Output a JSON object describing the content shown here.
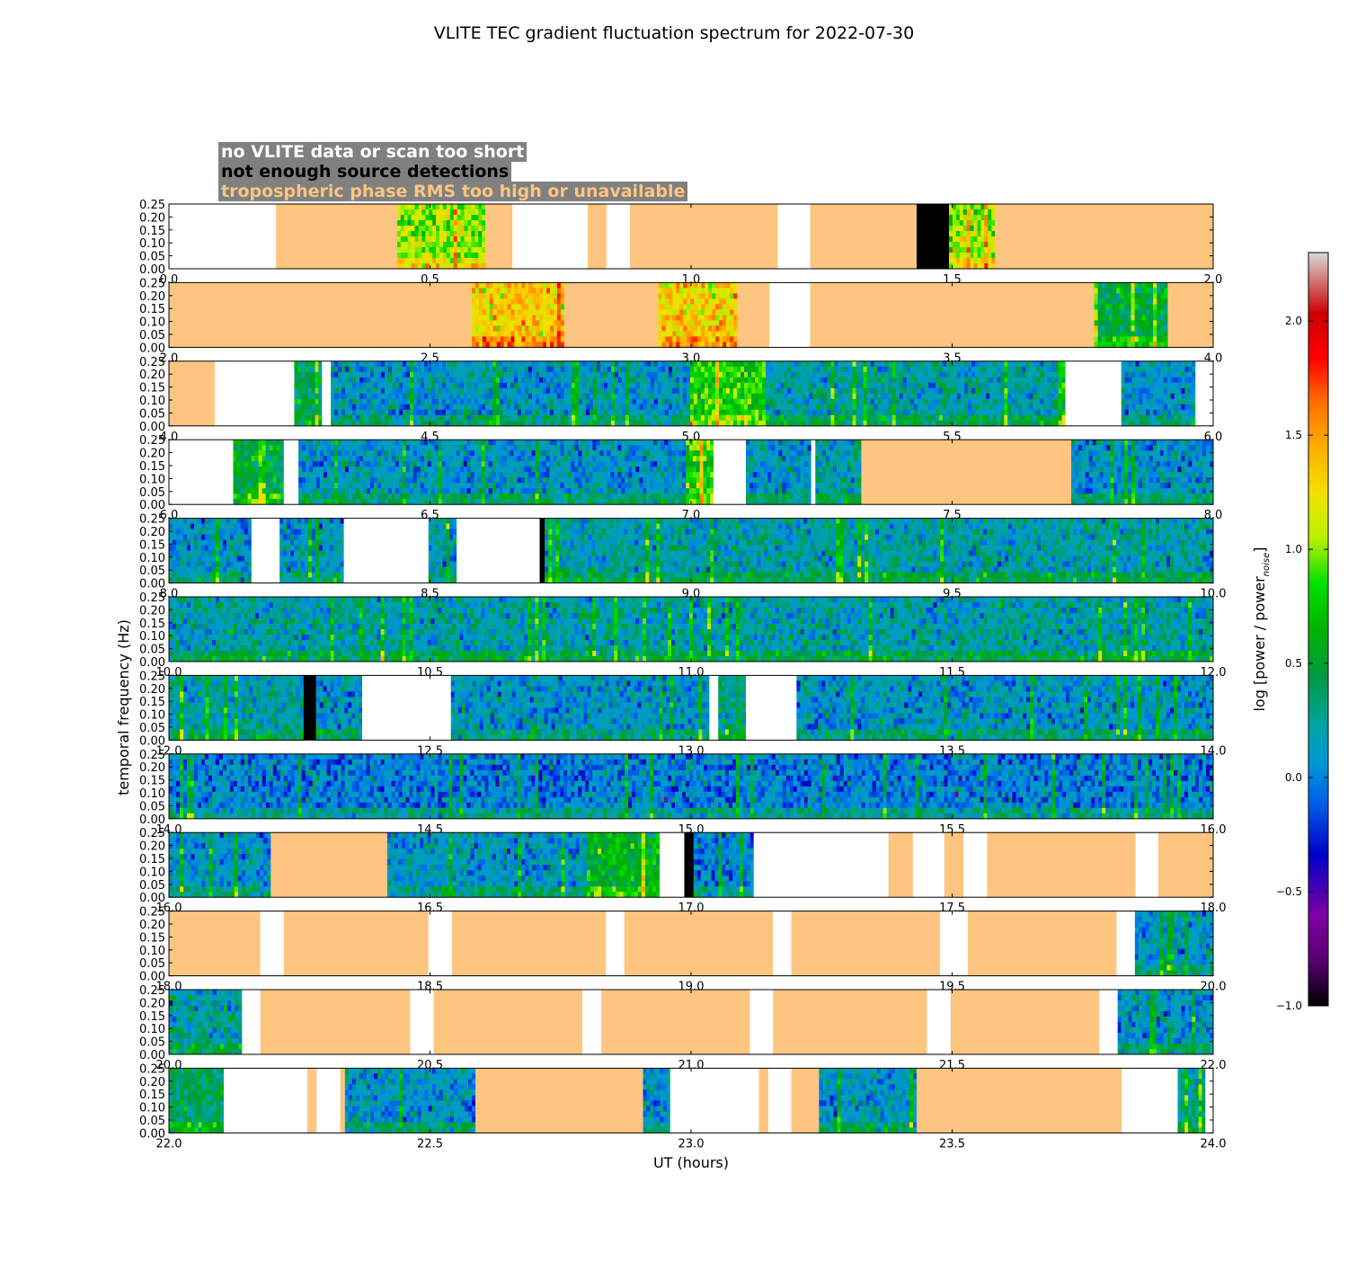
{
  "title": "VLITE TEC gradient fluctuation spectrum for 2022-07-30",
  "legend": [
    {
      "label": "no VLITE data or scan too short",
      "color": "#ffffff"
    },
    {
      "label": "not enough source detections",
      "color": "#000000"
    },
    {
      "label": "tropospheric phase RMS too high or unavailable",
      "color": "#fdc57f"
    }
  ],
  "chart_data": {
    "type": "heatmap",
    "xlabel": "UT (hours)",
    "ylabel": "temporal frequency (Hz)",
    "ylim": [
      0,
      0.25
    ],
    "yticks": [
      "0.00",
      "0.05",
      "0.10",
      "0.15",
      "0.20",
      "0.25"
    ],
    "colorbar": {
      "label": "log [power / power",
      "label_subscript": "noise",
      "label_close": "]",
      "range": [
        -1.0,
        2.3
      ],
      "ticks": [
        "−1.0",
        "−0.5",
        "0.0",
        "0.5",
        "1.0",
        "1.5",
        "2.0"
      ],
      "tick_values": [
        -1.0,
        -0.5,
        0.0,
        0.5,
        1.0,
        1.5,
        2.0
      ]
    },
    "colors": {
      "nodata": "#ffffff",
      "detections": "#000000",
      "troposphere": "#fdc57f"
    },
    "panels": [
      {
        "xlim": [
          0,
          2
        ],
        "xticks": [
          "0.0",
          "0.5",
          "1.0",
          "1.5",
          "2.0"
        ],
        "segments": [
          [
            "n",
            0,
            0.205
          ],
          [
            "t",
            0.205,
            0.437
          ],
          [
            "d",
            0.437,
            0.606,
            1.0
          ],
          [
            "t",
            0.606,
            0.658
          ],
          [
            "n",
            0.658,
            0.802
          ],
          [
            "t",
            0.802,
            0.838
          ],
          [
            "n",
            0.838,
            0.883
          ],
          [
            "t",
            0.883,
            1.166
          ],
          [
            "n",
            1.166,
            1.228
          ],
          [
            "t",
            1.228,
            1.432
          ],
          [
            "b",
            1.432,
            1.494
          ],
          [
            "d",
            1.494,
            1.582,
            1.0
          ],
          [
            "t",
            1.582,
            2.0
          ]
        ]
      },
      {
        "xlim": [
          2,
          4
        ],
        "xticks": [
          "2.0",
          "2.5",
          "3.0",
          "3.5",
          "4.0"
        ],
        "segments": [
          [
            "t",
            2.0,
            2.58
          ],
          [
            "d",
            2.58,
            2.757,
            1.3
          ],
          [
            "t",
            2.757,
            2.937
          ],
          [
            "d",
            2.937,
            3.088,
            1.3
          ],
          [
            "t",
            3.088,
            3.15
          ],
          [
            "n",
            3.15,
            3.228
          ],
          [
            "t",
            3.228,
            3.772
          ],
          [
            "d",
            3.772,
            3.913,
            0.5
          ],
          [
            "t",
            3.913,
            4.0
          ]
        ]
      },
      {
        "xlim": [
          4,
          6
        ],
        "xticks": [
          "4.0",
          "4.5",
          "5.0",
          "5.5",
          "6.0"
        ],
        "segments": [
          [
            "t",
            4.0,
            4.088
          ],
          [
            "n",
            4.088,
            4.24
          ],
          [
            "d",
            4.24,
            4.293,
            0.4
          ],
          [
            "n",
            4.293,
            4.31
          ],
          [
            "d",
            4.31,
            4.998,
            0.1
          ],
          [
            "d",
            4.998,
            5.143,
            0.8
          ],
          [
            "d",
            5.143,
            5.717,
            0.2
          ],
          [
            "n",
            5.717,
            5.824
          ],
          [
            "d",
            5.824,
            5.966,
            0.1
          ],
          [
            "n",
            5.966,
            6.0
          ]
        ]
      },
      {
        "xlim": [
          6,
          8
        ],
        "xticks": [
          "6.0",
          "6.5",
          "7.0",
          "7.5",
          "8.0"
        ],
        "segments": [
          [
            "n",
            6.0,
            6.123
          ],
          [
            "d",
            6.123,
            6.22,
            0.5
          ],
          [
            "n",
            6.22,
            6.248
          ],
          [
            "d",
            6.248,
            6.99,
            0.1
          ],
          [
            "d",
            6.99,
            7.043,
            0.8
          ],
          [
            "n",
            7.043,
            7.105
          ],
          [
            "d",
            7.105,
            7.23,
            0.1
          ],
          [
            "n",
            7.23,
            7.238
          ],
          [
            "d",
            7.238,
            7.326,
            0.2
          ],
          [
            "t",
            7.326,
            7.728
          ],
          [
            "d",
            7.728,
            8.0,
            0.1
          ]
        ]
      },
      {
        "xlim": [
          8,
          10
        ],
        "xticks": [
          "8.0",
          "8.5",
          "9.0",
          "9.5",
          "10.0"
        ],
        "segments": [
          [
            "d",
            8.0,
            8.158,
            0.1
          ],
          [
            "n",
            8.158,
            8.212
          ],
          [
            "d",
            8.212,
            8.335,
            0.1
          ],
          [
            "n",
            8.335,
            8.497
          ],
          [
            "d",
            8.497,
            8.551,
            0.1
          ],
          [
            "n",
            8.551,
            8.71
          ],
          [
            "b",
            8.71,
            8.72
          ],
          [
            "d",
            8.72,
            10.0,
            0.2
          ]
        ]
      },
      {
        "xlim": [
          10,
          12
        ],
        "xticks": [
          "10.0",
          "10.5",
          "11.0",
          "11.5",
          "12.0"
        ],
        "segments": [
          [
            "d",
            10.0,
            12.0,
            0.2
          ]
        ]
      },
      {
        "xlim": [
          12,
          14
        ],
        "xticks": [
          "12.0",
          "12.5",
          "13.0",
          "13.5",
          "14.0"
        ],
        "segments": [
          [
            "d",
            12.0,
            12.258,
            0.2
          ],
          [
            "b",
            12.258,
            12.282
          ],
          [
            "d",
            12.282,
            12.37,
            0.1
          ],
          [
            "n",
            12.37,
            12.54
          ],
          [
            "d",
            12.54,
            13.035,
            0.1
          ],
          [
            "n",
            13.035,
            13.052
          ],
          [
            "d",
            13.052,
            13.105,
            0.3
          ],
          [
            "n",
            13.105,
            13.202
          ],
          [
            "d",
            13.202,
            14.0,
            0.1
          ]
        ]
      },
      {
        "xlim": [
          14,
          16
        ],
        "xticks": [
          "14.0",
          "14.5",
          "15.0",
          "15.5",
          "16.0"
        ],
        "segments": [
          [
            "d",
            14.0,
            16.0,
            0.0
          ]
        ]
      },
      {
        "xlim": [
          16,
          18
        ],
        "xticks": [
          "16.0",
          "16.5",
          "17.0",
          "17.5",
          "18.0"
        ],
        "segments": [
          [
            "d",
            16.0,
            16.195,
            0.1
          ],
          [
            "t",
            16.195,
            16.418
          ],
          [
            "d",
            16.418,
            16.8,
            0.1
          ],
          [
            "d",
            16.8,
            16.94,
            0.6
          ],
          [
            "n",
            16.94,
            16.987
          ],
          [
            "b",
            16.987,
            17.005
          ],
          [
            "d",
            17.005,
            17.12,
            0.0
          ],
          [
            "n",
            17.12,
            17.378
          ],
          [
            "t",
            17.378,
            17.425
          ],
          [
            "n",
            17.425,
            17.485
          ],
          [
            "t",
            17.485,
            17.522
          ],
          [
            "n",
            17.522,
            17.567
          ],
          [
            "t",
            17.567,
            17.851
          ],
          [
            "n",
            17.851,
            17.895
          ],
          [
            "t",
            17.895,
            18.0
          ]
        ]
      },
      {
        "xlim": [
          18,
          20
        ],
        "xticks": [
          "18.0",
          "18.5",
          "19.0",
          "19.5",
          "20.0"
        ],
        "segments": [
          [
            "t",
            18.0,
            18.175
          ],
          [
            "n",
            18.175,
            18.22
          ],
          [
            "t",
            18.22,
            18.497
          ],
          [
            "n",
            18.497,
            18.542
          ],
          [
            "t",
            18.542,
            18.837
          ],
          [
            "n",
            18.837,
            18.872
          ],
          [
            "t",
            18.872,
            19.157
          ],
          [
            "n",
            19.157,
            19.192
          ],
          [
            "t",
            19.192,
            19.477
          ],
          [
            "n",
            19.477,
            19.53
          ],
          [
            "t",
            19.53,
            19.815
          ],
          [
            "n",
            19.815,
            19.85
          ],
          [
            "d",
            19.85,
            20.0,
            0.1
          ]
        ]
      },
      {
        "xlim": [
          20,
          22
        ],
        "xticks": [
          "20.0",
          "20.5",
          "21.0",
          "21.5",
          "22.0"
        ],
        "segments": [
          [
            "d",
            20.0,
            20.14,
            0.2
          ],
          [
            "n",
            20.14,
            20.175
          ],
          [
            "t",
            20.175,
            20.462
          ],
          [
            "n",
            20.462,
            20.507
          ],
          [
            "t",
            20.507,
            20.792
          ],
          [
            "n",
            20.792,
            20.828
          ],
          [
            "t",
            20.828,
            21.113
          ],
          [
            "n",
            21.113,
            21.157
          ],
          [
            "t",
            21.157,
            21.452
          ],
          [
            "n",
            21.452,
            21.497
          ],
          [
            "t",
            21.497,
            21.782
          ],
          [
            "n",
            21.782,
            21.817
          ],
          [
            "d",
            21.817,
            22.0,
            0.1
          ]
        ]
      },
      {
        "xlim": [
          22,
          24
        ],
        "xticks": [
          "22.0",
          "22.5",
          "23.0",
          "23.5",
          "24.0"
        ],
        "segments": [
          [
            "d",
            22.0,
            22.105,
            0.4
          ],
          [
            "n",
            22.105,
            22.265
          ],
          [
            "t",
            22.265,
            22.283
          ],
          [
            "n",
            22.283,
            22.328
          ],
          [
            "t",
            22.328,
            22.337
          ],
          [
            "d",
            22.337,
            22.587,
            0.1
          ],
          [
            "t",
            22.587,
            22.908
          ],
          [
            "d",
            22.908,
            22.96,
            0.1
          ],
          [
            "n",
            22.96,
            23.13
          ],
          [
            "t",
            23.13,
            23.148
          ],
          [
            "n",
            23.148,
            23.192
          ],
          [
            "t",
            23.192,
            23.245
          ],
          [
            "d",
            23.245,
            23.432,
            0.1
          ],
          [
            "t",
            23.432,
            23.825
          ],
          [
            "n",
            23.825,
            23.932
          ],
          [
            "d",
            23.932,
            23.985,
            0.3
          ],
          [
            "n",
            23.985,
            24.0
          ]
        ]
      }
    ]
  }
}
